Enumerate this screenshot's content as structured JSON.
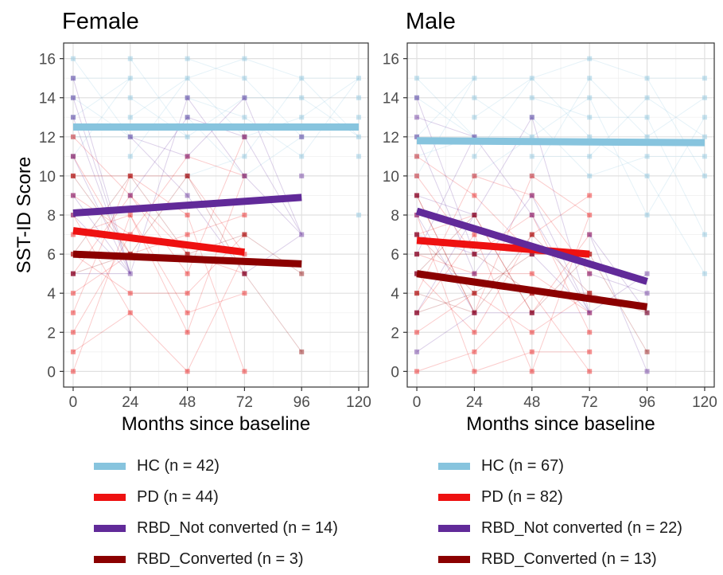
{
  "colors": {
    "HC": "#87c4de",
    "PD": "#ee1111",
    "RBD_Not": "#612a99",
    "RBD_Conv": "#8b0000",
    "grid": "#e0e0e0",
    "axis": "#333333"
  },
  "chart_data": [
    {
      "type": "line",
      "title": "Female",
      "xlabel": "Months since baseline",
      "ylabel": "SST-ID Score",
      "xlim": [
        -4,
        124
      ],
      "ylim": [
        -0.8,
        16.8
      ],
      "xticks": [
        0,
        24,
        48,
        72,
        96,
        120
      ],
      "yticks": [
        0,
        2,
        4,
        6,
        8,
        10,
        12,
        14,
        16
      ],
      "grid": true,
      "legend_position": "bottom",
      "series": [
        {
          "name": "HC",
          "label": "HC (n = 42)",
          "color_key": "HC",
          "fit": {
            "x": [
              0,
              120
            ],
            "y": [
              12.5,
              12.5
            ]
          }
        },
        {
          "name": "PD",
          "label": "PD (n = 44)",
          "color_key": "PD",
          "fit": {
            "x": [
              0,
              72
            ],
            "y": [
              7.2,
              6.1
            ]
          }
        },
        {
          "name": "RBD_Not converted",
          "label": "RBD_Not converted (n = 14)",
          "color_key": "RBD_Not",
          "fit": {
            "x": [
              0,
              96
            ],
            "y": [
              8.1,
              8.9
            ]
          }
        },
        {
          "name": "RBD_Converted",
          "label": "RBD_Converted (n = 3)",
          "color_key": "RBD_Conv",
          "fit": {
            "x": [
              0,
              96
            ],
            "y": [
              6.0,
              5.5
            ]
          }
        }
      ],
      "individual_points": [
        {
          "group": "HC",
          "points": [
            [
              0,
              15
            ],
            [
              0,
              14
            ],
            [
              0,
              13
            ],
            [
              0,
              12
            ],
            [
              0,
              11
            ],
            [
              24,
              15
            ],
            [
              24,
              14
            ],
            [
              24,
              13
            ],
            [
              24,
              12
            ],
            [
              24,
              11
            ],
            [
              48,
              15
            ],
            [
              48,
              14
            ],
            [
              48,
              13
            ],
            [
              48,
              12
            ],
            [
              48,
              10
            ],
            [
              72,
              16
            ],
            [
              72,
              15
            ],
            [
              72,
              14
            ],
            [
              72,
              13
            ],
            [
              72,
              12
            ],
            [
              72,
              11
            ],
            [
              96,
              15
            ],
            [
              96,
              14
            ],
            [
              96,
              13
            ],
            [
              96,
              12
            ],
            [
              96,
              11
            ],
            [
              120,
              15
            ],
            [
              120,
              14
            ],
            [
              120,
              13
            ],
            [
              120,
              12
            ],
            [
              120,
              11
            ],
            [
              120,
              8
            ],
            [
              0,
              16
            ],
            [
              24,
              16
            ],
            [
              48,
              16
            ],
            [
              72,
              10
            ]
          ]
        },
        {
          "group": "PD",
          "points": [
            [
              0,
              12
            ],
            [
              0,
              11
            ],
            [
              0,
              10
            ],
            [
              0,
              9
            ],
            [
              0,
              8
            ],
            [
              0,
              7
            ],
            [
              0,
              6
            ],
            [
              0,
              5
            ],
            [
              0,
              4
            ],
            [
              0,
              3
            ],
            [
              0,
              2
            ],
            [
              0,
              1
            ],
            [
              0,
              0
            ],
            [
              24,
              10
            ],
            [
              24,
              9
            ],
            [
              24,
              8
            ],
            [
              24,
              7
            ],
            [
              24,
              6
            ],
            [
              24,
              4
            ],
            [
              24,
              3
            ],
            [
              48,
              11
            ],
            [
              48,
              10
            ],
            [
              48,
              8
            ],
            [
              48,
              7
            ],
            [
              48,
              6
            ],
            [
              48,
              5
            ],
            [
              48,
              4
            ],
            [
              48,
              3
            ],
            [
              48,
              2
            ],
            [
              48,
              0
            ],
            [
              72,
              12
            ],
            [
              72,
              10
            ],
            [
              72,
              8
            ],
            [
              72,
              7
            ],
            [
              72,
              6
            ],
            [
              72,
              5
            ],
            [
              72,
              4
            ],
            [
              72,
              0
            ]
          ]
        },
        {
          "group": "RBD_Not",
          "points": [
            [
              0,
              15
            ],
            [
              0,
              14
            ],
            [
              0,
              13
            ],
            [
              0,
              11
            ],
            [
              0,
              9
            ],
            [
              0,
              8
            ],
            [
              0,
              5
            ],
            [
              24,
              12
            ],
            [
              24,
              9
            ],
            [
              24,
              5
            ],
            [
              48,
              14
            ],
            [
              48,
              13
            ],
            [
              48,
              11
            ],
            [
              48,
              9
            ],
            [
              72,
              14
            ],
            [
              72,
              12
            ],
            [
              72,
              10
            ],
            [
              72,
              5
            ],
            [
              96,
              12
            ],
            [
              96,
              10
            ],
            [
              96,
              7
            ]
          ]
        },
        {
          "group": "RBD_Conv",
          "points": [
            [
              0,
              10
            ],
            [
              0,
              6
            ],
            [
              0,
              5
            ],
            [
              24,
              10
            ],
            [
              24,
              6
            ],
            [
              48,
              10
            ],
            [
              48,
              6
            ],
            [
              72,
              7
            ],
            [
              72,
              5
            ],
            [
              96,
              1
            ],
            [
              96,
              5
            ]
          ]
        }
      ]
    },
    {
      "type": "line",
      "title": "Male",
      "xlabel": "Months since baseline",
      "ylabel": "",
      "xlim": [
        -4,
        124
      ],
      "ylim": [
        -0.8,
        16.8
      ],
      "xticks": [
        0,
        24,
        48,
        72,
        96,
        120
      ],
      "yticks": [
        0,
        2,
        4,
        6,
        8,
        10,
        12,
        14,
        16
      ],
      "grid": true,
      "legend_position": "bottom",
      "series": [
        {
          "name": "HC",
          "label": "HC (n = 67)",
          "color_key": "HC",
          "fit": {
            "x": [
              0,
              120
            ],
            "y": [
              11.8,
              11.7
            ]
          }
        },
        {
          "name": "PD",
          "label": "PD (n = 82)",
          "color_key": "PD",
          "fit": {
            "x": [
              0,
              72
            ],
            "y": [
              6.7,
              6.0
            ]
          }
        },
        {
          "name": "RBD_Not converted",
          "label": "RBD_Not converted (n = 22)",
          "color_key": "RBD_Not",
          "fit": {
            "x": [
              0,
              96
            ],
            "y": [
              8.2,
              4.6
            ]
          }
        },
        {
          "name": "RBD_Converted",
          "label": "RBD_Converted (n = 13)",
          "color_key": "RBD_Conv",
          "fit": {
            "x": [
              0,
              96
            ],
            "y": [
              5.0,
              3.3
            ]
          }
        }
      ],
      "individual_points": [
        {
          "group": "HC",
          "points": [
            [
              0,
              15
            ],
            [
              0,
              14
            ],
            [
              0,
              12
            ],
            [
              0,
              11
            ],
            [
              0,
              10
            ],
            [
              24,
              15
            ],
            [
              24,
              14
            ],
            [
              24,
              13
            ],
            [
              24,
              12
            ],
            [
              24,
              11
            ],
            [
              24,
              10
            ],
            [
              48,
              15
            ],
            [
              48,
              14
            ],
            [
              48,
              13
            ],
            [
              48,
              12
            ],
            [
              48,
              11
            ],
            [
              48,
              10
            ],
            [
              72,
              16
            ],
            [
              72,
              15
            ],
            [
              72,
              14
            ],
            [
              72,
              13
            ],
            [
              72,
              12
            ],
            [
              72,
              11
            ],
            [
              72,
              10
            ],
            [
              96,
              15
            ],
            [
              96,
              14
            ],
            [
              96,
              13
            ],
            [
              96,
              12
            ],
            [
              96,
              11
            ],
            [
              96,
              10
            ],
            [
              96,
              8
            ],
            [
              120,
              15
            ],
            [
              120,
              14
            ],
            [
              120,
              13
            ],
            [
              120,
              12
            ],
            [
              120,
              11
            ],
            [
              120,
              10
            ],
            [
              120,
              7
            ],
            [
              120,
              5
            ]
          ]
        },
        {
          "group": "PD",
          "points": [
            [
              0,
              11
            ],
            [
              0,
              10
            ],
            [
              0,
              9
            ],
            [
              0,
              8
            ],
            [
              0,
              7
            ],
            [
              0,
              6
            ],
            [
              0,
              5
            ],
            [
              0,
              4
            ],
            [
              0,
              3
            ],
            [
              0,
              2
            ],
            [
              0,
              0
            ],
            [
              24,
              10
            ],
            [
              24,
              9
            ],
            [
              24,
              8
            ],
            [
              24,
              7
            ],
            [
              24,
              6
            ],
            [
              24,
              5
            ],
            [
              24,
              4
            ],
            [
              24,
              3
            ],
            [
              24,
              2
            ],
            [
              24,
              1
            ],
            [
              24,
              0
            ],
            [
              48,
              10
            ],
            [
              48,
              9
            ],
            [
              48,
              8
            ],
            [
              48,
              7
            ],
            [
              48,
              6
            ],
            [
              48,
              5
            ],
            [
              48,
              4
            ],
            [
              48,
              3
            ],
            [
              48,
              2
            ],
            [
              48,
              1
            ],
            [
              48,
              0
            ],
            [
              72,
              9
            ],
            [
              72,
              8
            ],
            [
              72,
              7
            ],
            [
              72,
              6
            ],
            [
              72,
              5
            ],
            [
              72,
              4
            ],
            [
              72,
              3
            ],
            [
              72,
              2
            ],
            [
              72,
              1
            ],
            [
              72,
              0
            ]
          ]
        },
        {
          "group": "RBD_Not",
          "points": [
            [
              0,
              14
            ],
            [
              0,
              13
            ],
            [
              0,
              12
            ],
            [
              0,
              9
            ],
            [
              0,
              8
            ],
            [
              0,
              7
            ],
            [
              0,
              6
            ],
            [
              0,
              5
            ],
            [
              0,
              3
            ],
            [
              0,
              1
            ],
            [
              24,
              12
            ],
            [
              24,
              8
            ],
            [
              24,
              6
            ],
            [
              24,
              5
            ],
            [
              24,
              3
            ],
            [
              48,
              13
            ],
            [
              48,
              9
            ],
            [
              48,
              8
            ],
            [
              48,
              6
            ],
            [
              48,
              3
            ],
            [
              72,
              7
            ],
            [
              72,
              5
            ],
            [
              72,
              3
            ],
            [
              96,
              5
            ],
            [
              96,
              4
            ],
            [
              96,
              3
            ],
            [
              96,
              0
            ]
          ]
        },
        {
          "group": "RBD_Conv",
          "points": [
            [
              0,
              9
            ],
            [
              0,
              7
            ],
            [
              0,
              6
            ],
            [
              0,
              5
            ],
            [
              0,
              4
            ],
            [
              0,
              3
            ],
            [
              24,
              8
            ],
            [
              24,
              6
            ],
            [
              24,
              4
            ],
            [
              24,
              3
            ],
            [
              48,
              7
            ],
            [
              48,
              6
            ],
            [
              48,
              4
            ],
            [
              48,
              3
            ],
            [
              72,
              6
            ],
            [
              72,
              4
            ],
            [
              96,
              3
            ],
            [
              96,
              1
            ]
          ]
        }
      ]
    }
  ]
}
